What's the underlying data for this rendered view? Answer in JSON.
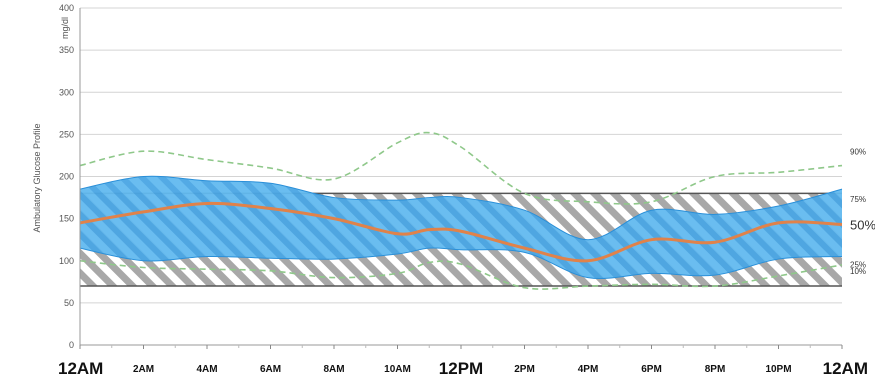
{
  "chart_data": {
    "type": "area",
    "ylabel": "Ambulatory Glucose Profile",
    "units": "mg/dl",
    "ylim": [
      0,
      400
    ],
    "yticks": [
      0,
      50,
      100,
      150,
      200,
      250,
      300,
      350,
      400
    ],
    "target_range": [
      70,
      180
    ],
    "x_hours": [
      0,
      2,
      4,
      6,
      8,
      10,
      11,
      12,
      14,
      16,
      18,
      20,
      22,
      24
    ],
    "xtick_labels": [
      {
        "hour": 0,
        "label": "12AM",
        "major": true
      },
      {
        "hour": 2,
        "label": "2AM",
        "major": false
      },
      {
        "hour": 4,
        "label": "4AM",
        "major": false
      },
      {
        "hour": 6,
        "label": "6AM",
        "major": false
      },
      {
        "hour": 8,
        "label": "8AM",
        "major": false
      },
      {
        "hour": 10,
        "label": "10AM",
        "major": false
      },
      {
        "hour": 12,
        "label": "12PM",
        "major": true
      },
      {
        "hour": 14,
        "label": "2PM",
        "major": false
      },
      {
        "hour": 16,
        "label": "4PM",
        "major": false
      },
      {
        "hour": 18,
        "label": "6PM",
        "major": false
      },
      {
        "hour": 20,
        "label": "8PM",
        "major": false
      },
      {
        "hour": 22,
        "label": "10PM",
        "major": false
      },
      {
        "hour": 24,
        "label": "12AM",
        "major": true
      }
    ],
    "series": [
      {
        "name": "90%",
        "style": "dashed",
        "color": "#8fc88a",
        "values": [
          213,
          230,
          220,
          210,
          197,
          240,
          252,
          235,
          180,
          170,
          170,
          200,
          205,
          213
        ]
      },
      {
        "name": "75%",
        "style": "band-top",
        "color": "#2a8fd8",
        "values": [
          185,
          200,
          195,
          192,
          175,
          172,
          175,
          175,
          160,
          125,
          160,
          155,
          165,
          185
        ]
      },
      {
        "name": "50%",
        "style": "median",
        "color": "#e0824a",
        "values": [
          145,
          158,
          168,
          162,
          150,
          132,
          137,
          135,
          115,
          100,
          125,
          122,
          145,
          143
        ]
      },
      {
        "name": "25%",
        "style": "band-bottom",
        "color": "#2a8fd8",
        "values": [
          115,
          100,
          105,
          103,
          102,
          108,
          115,
          113,
          110,
          80,
          85,
          83,
          102,
          105
        ]
      },
      {
        "name": "10%",
        "style": "dashed",
        "color": "#8fc88a",
        "values": [
          100,
          92,
          90,
          88,
          80,
          85,
          98,
          96,
          68,
          70,
          72,
          70,
          82,
          95
        ]
      }
    ],
    "grid": true
  },
  "colors": {
    "band": "#62b9ef",
    "band_edge": "#2a8fd8",
    "target_hatch": "#a8a8a8",
    "median": "#e0824a",
    "dashed": "#8fc88a",
    "grid": "#d4d4d4"
  }
}
